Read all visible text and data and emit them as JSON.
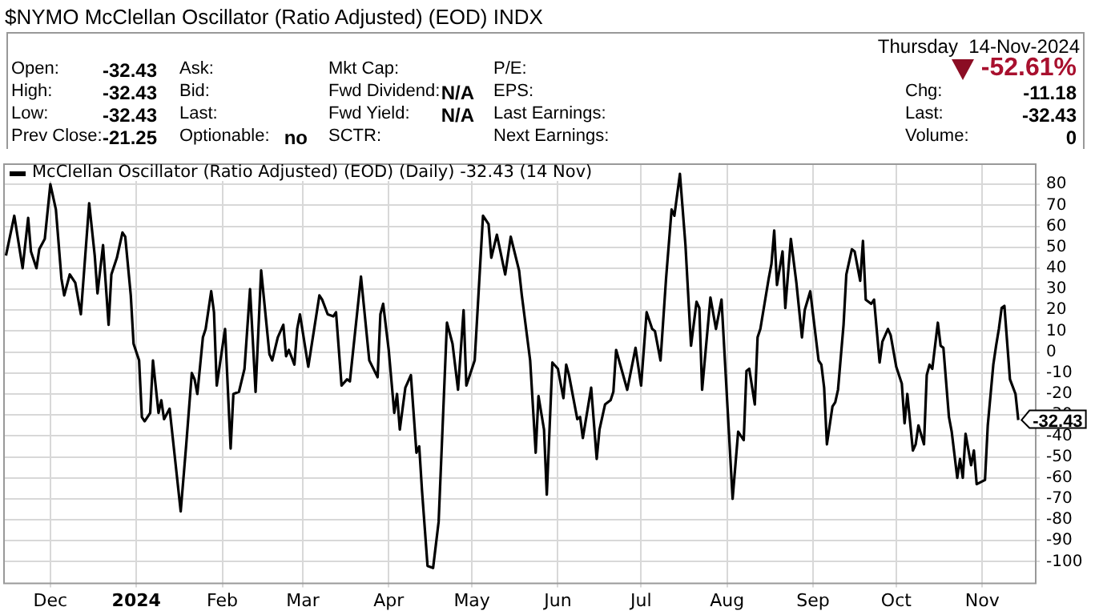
{
  "chart_data": {
    "type": "line",
    "title": "$NYMO McClellan Oscillator (Ratio Adjusted) (EOD) INDX",
    "subtitle": "Thursday  14-Nov-2024",
    "annotations": [
      "Open:",
      "-32.43",
      "Ask:",
      "Mkt Cap:",
      "P/E:",
      "-52.61%",
      "High:",
      "-32.43",
      "Bid:",
      "Fwd Dividend:",
      "N/A",
      "EPS:",
      "Chg:",
      "-11.18",
      "Low:",
      "-32.43",
      "Last:",
      "Fwd Yield:",
      "N/A",
      "Last Earnings:",
      "Last:",
      "-32.43",
      "Prev Close:",
      "-21.25",
      "Optionable:",
      "no",
      "SCTR:",
      "Next Earnings:",
      "Volume:",
      "0",
      {
        "text": "-32.43",
        "x": "2024-11-14",
        "y": -32.43
      }
    ],
    "xlim": [
      "2023-11-14",
      "2024-11-20"
    ],
    "xticks": [
      {
        "value": "2023-12-01",
        "label": "Dec"
      },
      {
        "value": "2024-01-01",
        "label": "2024"
      },
      {
        "value": "2024-02-01",
        "label": "Feb"
      },
      {
        "value": "2024-03-01",
        "label": "Mar"
      },
      {
        "value": "2024-04-01",
        "label": "Apr"
      },
      {
        "value": "2024-05-01",
        "label": "May"
      },
      {
        "value": "2024-06-01",
        "label": "Jun"
      },
      {
        "value": "2024-07-01",
        "label": "Jul"
      },
      {
        "value": "2024-08-01",
        "label": "Aug"
      },
      {
        "value": "2024-09-01",
        "label": "Sep"
      },
      {
        "value": "2024-10-01",
        "label": "Oct"
      },
      {
        "value": "2024-11-01",
        "label": "Nov"
      }
    ],
    "ylim": [
      -110,
      90
    ],
    "yticks": [
      80,
      70,
      60,
      50,
      40,
      30,
      20,
      10,
      0,
      -10,
      -20,
      -30,
      -40,
      -50,
      -60,
      -70,
      -80,
      -90,
      -100
    ],
    "grid": true,
    "legend": "top left",
    "marker": "none",
    "line_style": "solid",
    "series": [
      {
        "name": "McClellan Oscillator (Ratio Adjusted) (EOD) (Daily) -32.43 (14 Nov)",
        "color": "#000000",
        "x": [
          "2023-11-15",
          "2023-11-18",
          "2023-11-21",
          "2023-11-23",
          "2023-11-24",
          "2023-11-26",
          "2023-11-27",
          "2023-11-29",
          "2023-12-01",
          "2023-12-03",
          "2023-12-05",
          "2023-12-06",
          "2023-12-08",
          "2023-12-10",
          "2023-12-12",
          "2023-12-15",
          "2023-12-17",
          "2023-12-18",
          "2023-12-20",
          "2023-12-22",
          "2023-12-23",
          "2023-12-25",
          "2023-12-27",
          "2023-12-28",
          "2023-12-30",
          "2023-12-31",
          "2024-01-02",
          "2024-01-03",
          "2024-01-04",
          "2024-01-06",
          "2024-01-07",
          "2024-01-09",
          "2024-01-10",
          "2024-01-11",
          "2024-01-13",
          "2024-01-17",
          "2024-01-19",
          "2024-01-21",
          "2024-01-22",
          "2024-01-23",
          "2024-01-25",
          "2024-01-26",
          "2024-01-28",
          "2024-01-29",
          "2024-01-30",
          "2024-02-02",
          "2024-02-04",
          "2024-02-05",
          "2024-02-07",
          "2024-02-09",
          "2024-02-11",
          "2024-02-13",
          "2024-02-15",
          "2024-02-18",
          "2024-02-19",
          "2024-02-21",
          "2024-02-23",
          "2024-02-24",
          "2024-02-25",
          "2024-02-27",
          "2024-02-28",
          "2024-02-29",
          "2024-03-03",
          "2024-03-07",
          "2024-03-08",
          "2024-03-10",
          "2024-03-12",
          "2024-03-13",
          "2024-03-15",
          "2024-03-17",
          "2024-03-18",
          "2024-03-22",
          "2024-03-25",
          "2024-03-28",
          "2024-03-29",
          "2024-03-30",
          "2024-04-01",
          "2024-04-03",
          "2024-04-04",
          "2024-04-05",
          "2024-04-07",
          "2024-04-09",
          "2024-04-11",
          "2024-04-12",
          "2024-04-13",
          "2024-04-15",
          "2024-04-17",
          "2024-04-18",
          "2024-04-19",
          "2024-04-22",
          "2024-04-24",
          "2024-04-26",
          "2024-04-28",
          "2024-04-29",
          "2024-05-02",
          "2024-05-05",
          "2024-05-07",
          "2024-05-08",
          "2024-05-10",
          "2024-05-13",
          "2024-05-15",
          "2024-05-18",
          "2024-05-19",
          "2024-05-22",
          "2024-05-24",
          "2024-05-25",
          "2024-05-27",
          "2024-05-28",
          "2024-05-30",
          "2024-06-01",
          "2024-06-03",
          "2024-06-04",
          "2024-06-05",
          "2024-06-08",
          "2024-06-09",
          "2024-06-10",
          "2024-06-13",
          "2024-06-15",
          "2024-06-16",
          "2024-06-18",
          "2024-06-20",
          "2024-06-21",
          "2024-06-22",
          "2024-06-26",
          "2024-06-29",
          "2024-07-01",
          "2024-07-03",
          "2024-07-05",
          "2024-07-06",
          "2024-07-08",
          "2024-07-10",
          "2024-07-12",
          "2024-07-13",
          "2024-07-15",
          "2024-07-17",
          "2024-07-19",
          "2024-07-21",
          "2024-07-22",
          "2024-07-23",
          "2024-07-26",
          "2024-07-28",
          "2024-07-30",
          "2024-08-03",
          "2024-08-05",
          "2024-08-07",
          "2024-08-08",
          "2024-08-09",
          "2024-08-11",
          "2024-08-12",
          "2024-08-13",
          "2024-08-16",
          "2024-08-17",
          "2024-08-18",
          "2024-08-19",
          "2024-08-21",
          "2024-08-22",
          "2024-08-24",
          "2024-08-26",
          "2024-08-28",
          "2024-08-29",
          "2024-08-31",
          "2024-09-03",
          "2024-09-04",
          "2024-09-05",
          "2024-09-06",
          "2024-09-08",
          "2024-09-09",
          "2024-09-10",
          "2024-09-12",
          "2024-09-13",
          "2024-09-15",
          "2024-09-16",
          "2024-09-18",
          "2024-09-19",
          "2024-09-20",
          "2024-09-22",
          "2024-09-23",
          "2024-09-25",
          "2024-09-26",
          "2024-09-28",
          "2024-09-29",
          "2024-10-01",
          "2024-10-03",
          "2024-10-04",
          "2024-10-05",
          "2024-10-07",
          "2024-10-08",
          "2024-10-09",
          "2024-10-11",
          "2024-10-12",
          "2024-10-13",
          "2024-10-14",
          "2024-10-16",
          "2024-10-17",
          "2024-10-18",
          "2024-10-20",
          "2024-10-21",
          "2024-10-23",
          "2024-10-24",
          "2024-10-25",
          "2024-10-26",
          "2024-10-28",
          "2024-10-29",
          "2024-10-30",
          "2024-11-02",
          "2024-11-03",
          "2024-11-05",
          "2024-11-06",
          "2024-11-07",
          "2024-11-08",
          "2024-11-09",
          "2024-11-11",
          "2024-11-13",
          "2024-11-14"
        ],
        "values": [
          46,
          65,
          40,
          64,
          48,
          40,
          49,
          54,
          80,
          68,
          35,
          27,
          37,
          33,
          18,
          71,
          46,
          28,
          51,
          13,
          37,
          45,
          57,
          55,
          27,
          4,
          -4,
          -31,
          -33,
          -29,
          -4,
          -29,
          -23,
          -32,
          -27,
          -76,
          -44,
          -10,
          -13,
          -20,
          7,
          11,
          29,
          19,
          -16,
          11,
          -46,
          -20,
          -19,
          -8,
          30,
          -19,
          39,
          -1,
          -4,
          7,
          13,
          -2,
          1,
          -6,
          11,
          18,
          -7,
          27,
          25,
          18,
          17,
          19,
          -16,
          -13,
          -14,
          36,
          -4,
          -12,
          18,
          23,
          1,
          -29,
          -20,
          -37,
          -17,
          -11,
          -48,
          -45,
          -66,
          -102,
          -103,
          -92,
          -81,
          14,
          4,
          -18,
          20,
          -16,
          -4,
          65,
          61,
          45,
          56,
          37,
          55,
          39,
          27,
          -4,
          -48,
          -21,
          -37,
          -68,
          -5,
          -8,
          -22,
          -6,
          -11,
          -32,
          -31,
          -41,
          -17,
          -51,
          -37,
          -25,
          -23,
          -19,
          1,
          -18,
          2,
          -16,
          19,
          11,
          10,
          -4,
          35,
          68,
          65,
          85,
          51,
          3,
          24,
          21,
          -18,
          26,
          11,
          25,
          -70,
          -38,
          -42,
          -9,
          -8,
          -25,
          7,
          11,
          35,
          42,
          58,
          32,
          48,
          21,
          54,
          33,
          7,
          20,
          29,
          -4,
          -6,
          -17,
          -44,
          -26,
          -24,
          -18,
          13,
          37,
          49,
          48,
          34,
          53,
          25,
          23,
          25,
          -5,
          5,
          11,
          8,
          -7,
          -15,
          -34,
          -20,
          -47,
          -44,
          -35,
          -44,
          -11,
          -6,
          -8,
          14,
          3,
          2,
          -31,
          -38,
          -60,
          -51,
          -60,
          -39,
          -54,
          -47,
          -63,
          -61,
          -35,
          -6,
          3,
          11,
          21,
          22,
          -13,
          -20,
          -32.43
        ]
      }
    ]
  }
}
